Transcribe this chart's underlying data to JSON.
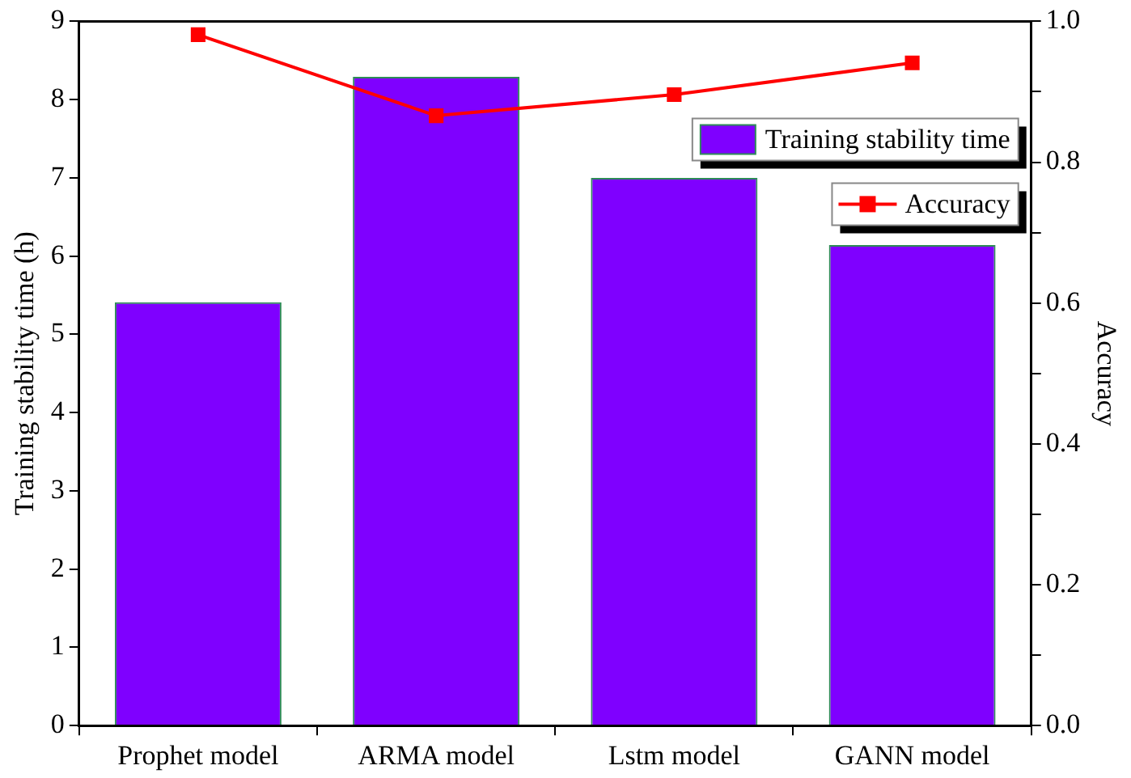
{
  "chart_data": {
    "type": "bar",
    "categories": [
      "Prophet model",
      "ARMA model",
      "Lstm model",
      "GANN model"
    ],
    "series": [
      {
        "name": "Training stability time",
        "color": "#7f00ff",
        "values": [
          5.41,
          8.29,
          7.0,
          6.14
        ]
      },
      {
        "name": "Accuracy",
        "type": "line",
        "axis": "y2",
        "color": "#ff0000",
        "values": [
          0.981,
          0.866,
          0.896,
          0.941
        ],
        "marker": "square"
      }
    ],
    "ylabel": "Training stability time (h)",
    "y2label": "Accuracy",
    "ylim": [
      0,
      9
    ],
    "yticks": [
      0,
      1,
      2,
      3,
      4,
      5,
      6,
      7,
      8,
      9
    ],
    "y2lim": [
      0,
      1
    ],
    "y2ticks": [
      {
        "value": 0,
        "label": "0.0"
      },
      {
        "value": 0.1,
        "label": null
      },
      {
        "value": 0.2,
        "label": "0.2"
      },
      {
        "value": 0.3,
        "label": null
      },
      {
        "value": 0.4,
        "label": "0.4"
      },
      {
        "value": 0.5,
        "label": null
      },
      {
        "value": 0.6,
        "label": "0.6"
      },
      {
        "value": 0.7,
        "label": null
      },
      {
        "value": 0.8,
        "label": "0.8"
      },
      {
        "value": 0.9,
        "label": null
      },
      {
        "value": 1,
        "label": "1.0"
      }
    ],
    "grid": false,
    "legend": "top right"
  }
}
